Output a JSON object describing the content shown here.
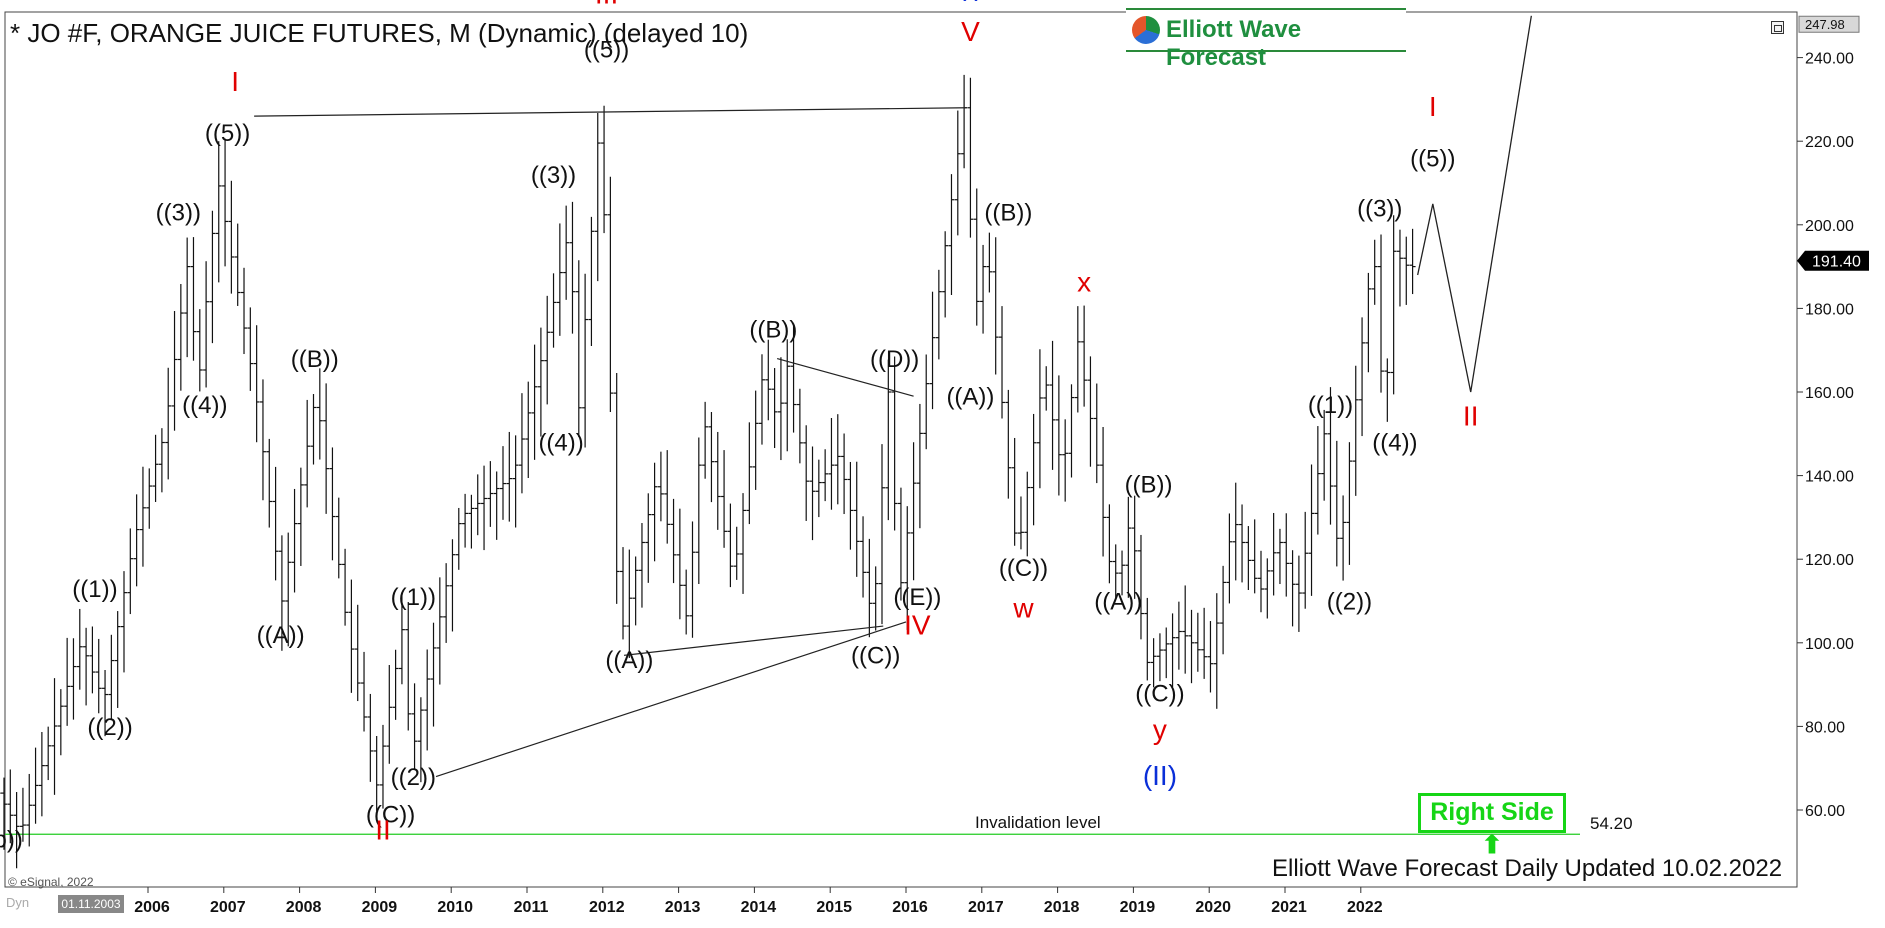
{
  "title": "* JO #F, ORANGE JUICE FUTURES, M (Dynamic) (delayed 10)",
  "logo_text": "Elliott Wave Forecast",
  "right_side_label": "Right Side ⬆",
  "footer": "Elliott Wave Forecast Daily Updated 10.02.2022",
  "copyright": "© eSignal, 2022",
  "start_date": "01.11.2003",
  "dyn_label": "Dyn",
  "invalidation": {
    "label": "Invalidation level",
    "value": "54.20",
    "price": 54.2
  },
  "colors": {
    "bar": "#111111",
    "wave_red": "#e00000",
    "wave_blue": "#0a2fd8",
    "invalidation_line": "#22cc22",
    "price_tag_bg": "#000000",
    "right_side": "#16d516"
  },
  "chart_data": {
    "type": "bar",
    "title": "* JO #F, ORANGE JUICE FUTURES, M (Dynamic) (delayed 10)",
    "ylim": [
      45,
      250
    ],
    "y_ticks": [
      "240.00",
      "220.00",
      "200.00",
      "180.00",
      "160.00",
      "140.00",
      "120.00",
      "100.00",
      "80.00",
      "60.00"
    ],
    "y_tick_values": [
      240,
      220,
      200,
      180,
      160,
      140,
      120,
      100,
      80,
      60
    ],
    "x_ticks": [
      "2006",
      "2007",
      "2008",
      "2009",
      "2010",
      "2011",
      "2012",
      "2013",
      "2014",
      "2015",
      "2016",
      "2017",
      "2018",
      "2019",
      "2020",
      "2021",
      "2022"
    ],
    "x_tick_values": [
      2006,
      2007,
      2008,
      2009,
      2010,
      2011,
      2012,
      2013,
      2014,
      2015,
      2016,
      2017,
      2018,
      2019,
      2020,
      2021,
      2022
    ],
    "xlim": [
      2003.85,
      2024.3
    ],
    "price_tags": [
      {
        "label": "247.98",
        "value": 247.98,
        "style": "top"
      },
      {
        "label": "191.40",
        "value": 191.4,
        "style": "current"
      }
    ],
    "pivots": [
      [
        2003.85,
        72
      ],
      [
        2004.4,
        54.5
      ],
      [
        2005.2,
        100
      ],
      [
        2005.5,
        86
      ],
      [
        2005.9,
        125
      ],
      [
        2006.3,
        150
      ],
      [
        2006.6,
        190
      ],
      [
        2006.75,
        162
      ],
      [
        2007.0,
        211
      ],
      [
        2007.5,
        160
      ],
      [
        2007.85,
        110
      ],
      [
        2008.3,
        160
      ],
      [
        2008.7,
        105
      ],
      [
        2009.1,
        66
      ],
      [
        2009.45,
        105
      ],
      [
        2009.55,
        72
      ],
      [
        2010.2,
        130
      ],
      [
        2010.9,
        140
      ],
      [
        2011.3,
        170
      ],
      [
        2011.65,
        200
      ],
      [
        2011.75,
        152
      ],
      [
        2012.05,
        228
      ],
      [
        2012.3,
        100
      ],
      [
        2012.8,
        140
      ],
      [
        2013.2,
        105
      ],
      [
        2013.4,
        155
      ],
      [
        2013.8,
        115
      ],
      [
        2014.2,
        165
      ],
      [
        2014.4,
        152
      ],
      [
        2014.5,
        168
      ],
      [
        2014.8,
        135
      ],
      [
        2015.2,
        145
      ],
      [
        2015.65,
        105
      ],
      [
        2015.85,
        160
      ],
      [
        2016.0,
        112
      ],
      [
        2016.35,
        162
      ],
      [
        2016.6,
        195
      ],
      [
        2016.85,
        228
      ],
      [
        2017.0,
        180
      ],
      [
        2017.15,
        195
      ],
      [
        2017.55,
        120
      ],
      [
        2017.9,
        165
      ],
      [
        2018.15,
        140
      ],
      [
        2018.35,
        172
      ],
      [
        2018.55,
        150
      ],
      [
        2018.75,
        120
      ],
      [
        2018.9,
        115
      ],
      [
        2019.05,
        131
      ],
      [
        2019.25,
        95
      ],
      [
        2019.7,
        103
      ],
      [
        2020.1,
        95
      ],
      [
        2020.4,
        130
      ],
      [
        2020.75,
        112
      ],
      [
        2021.0,
        125
      ],
      [
        2021.25,
        110
      ],
      [
        2021.6,
        150
      ],
      [
        2021.8,
        120
      ],
      [
        2022.05,
        164
      ],
      [
        2022.25,
        195
      ],
      [
        2022.4,
        150
      ],
      [
        2022.5,
        194
      ],
      [
        2022.7,
        190
      ]
    ],
    "projection": [
      [
        2022.75,
        188
      ],
      [
        2022.95,
        205
      ],
      [
        2023.45,
        160
      ],
      [
        2024.25,
        250
      ]
    ],
    "trendlines": [
      {
        "from": [
          2007.4,
          226
        ],
        "to": [
          2016.8,
          228
        ]
      },
      {
        "from": [
          2012.28,
          97
        ],
        "to": [
          2015.7,
          104
        ]
      },
      {
        "from": [
          2014.3,
          168
        ],
        "to": [
          2016.1,
          159
        ]
      },
      {
        "from": [
          2009.8,
          68
        ],
        "to": [
          2016.0,
          105
        ]
      }
    ],
    "labels": [
      {
        "text": "((b))",
        "x": 2004.05,
        "y": 51,
        "color": "black"
      },
      {
        "text": "((1))",
        "x": 2005.3,
        "y": 111,
        "color": "black"
      },
      {
        "text": "((2))",
        "x": 2005.5,
        "y": 78,
        "color": "black"
      },
      {
        "text": "((3))",
        "x": 2006.4,
        "y": 201,
        "color": "black"
      },
      {
        "text": "((4))",
        "x": 2006.75,
        "y": 155,
        "color": "black"
      },
      {
        "text": "((5))",
        "x": 2007.05,
        "y": 220,
        "color": "black"
      },
      {
        "text": "I",
        "x": 2007.15,
        "y": 232,
        "color": "red"
      },
      {
        "text": "((B))",
        "x": 2008.2,
        "y": 166,
        "color": "black"
      },
      {
        "text": "((A))",
        "x": 2007.75,
        "y": 100,
        "color": "black"
      },
      {
        "text": "((1))",
        "x": 2009.5,
        "y": 109,
        "color": "black"
      },
      {
        "text": "((2))",
        "x": 2009.5,
        "y": 66,
        "color": "black"
      },
      {
        "text": "((C))",
        "x": 2009.2,
        "y": 57,
        "color": "black"
      },
      {
        "text": "II",
        "x": 2009.1,
        "y": 53,
        "color": "red"
      },
      {
        "text": "((3))",
        "x": 2011.35,
        "y": 210,
        "color": "black"
      },
      {
        "text": "((4))",
        "x": 2011.45,
        "y": 146,
        "color": "black"
      },
      {
        "text": "((5))",
        "x": 2012.05,
        "y": 240,
        "color": "black"
      },
      {
        "text": "III",
        "x": 2012.05,
        "y": 253,
        "color": "red"
      },
      {
        "text": "((A))",
        "x": 2012.35,
        "y": 94,
        "color": "black"
      },
      {
        "text": "((B))",
        "x": 2014.25,
        "y": 173,
        "color": "black"
      },
      {
        "text": "((D))",
        "x": 2015.85,
        "y": 166,
        "color": "black"
      },
      {
        "text": "((E))",
        "x": 2016.15,
        "y": 109,
        "color": "black"
      },
      {
        "text": "((C))",
        "x": 2015.6,
        "y": 95,
        "color": "black"
      },
      {
        "text": "IV",
        "x": 2016.15,
        "y": 102,
        "color": "red"
      },
      {
        "text": "(I)",
        "x": 2016.85,
        "y": 255,
        "color": "blue"
      },
      {
        "text": "V",
        "x": 2016.85,
        "y": 244,
        "color": "red"
      },
      {
        "text": "((B))",
        "x": 2017.35,
        "y": 201,
        "color": "black"
      },
      {
        "text": "((A))",
        "x": 2016.85,
        "y": 157,
        "color": "black"
      },
      {
        "text": "((C))",
        "x": 2017.55,
        "y": 116,
        "color": "black"
      },
      {
        "text": "w",
        "x": 2017.55,
        "y": 106,
        "color": "red"
      },
      {
        "text": "x",
        "x": 2018.35,
        "y": 184,
        "color": "red"
      },
      {
        "text": "((B))",
        "x": 2019.2,
        "y": 136,
        "color": "black"
      },
      {
        "text": "((A))",
        "x": 2018.8,
        "y": 108,
        "color": "black"
      },
      {
        "text": "((C))",
        "x": 2019.35,
        "y": 86,
        "color": "black"
      },
      {
        "text": "y",
        "x": 2019.35,
        "y": 77,
        "color": "red"
      },
      {
        "text": "(II)",
        "x": 2019.35,
        "y": 66,
        "color": "blue"
      },
      {
        "text": "((1))",
        "x": 2021.6,
        "y": 155,
        "color": "black"
      },
      {
        "text": "((2))",
        "x": 2021.85,
        "y": 108,
        "color": "black"
      },
      {
        "text": "((3))",
        "x": 2022.25,
        "y": 202,
        "color": "black"
      },
      {
        "text": "((4))",
        "x": 2022.45,
        "y": 146,
        "color": "black"
      },
      {
        "text": "((5))",
        "x": 2022.95,
        "y": 214,
        "color": "black"
      },
      {
        "text": "I",
        "x": 2022.95,
        "y": 226,
        "color": "red"
      },
      {
        "text": "II",
        "x": 2023.45,
        "y": 152,
        "color": "red"
      }
    ]
  }
}
